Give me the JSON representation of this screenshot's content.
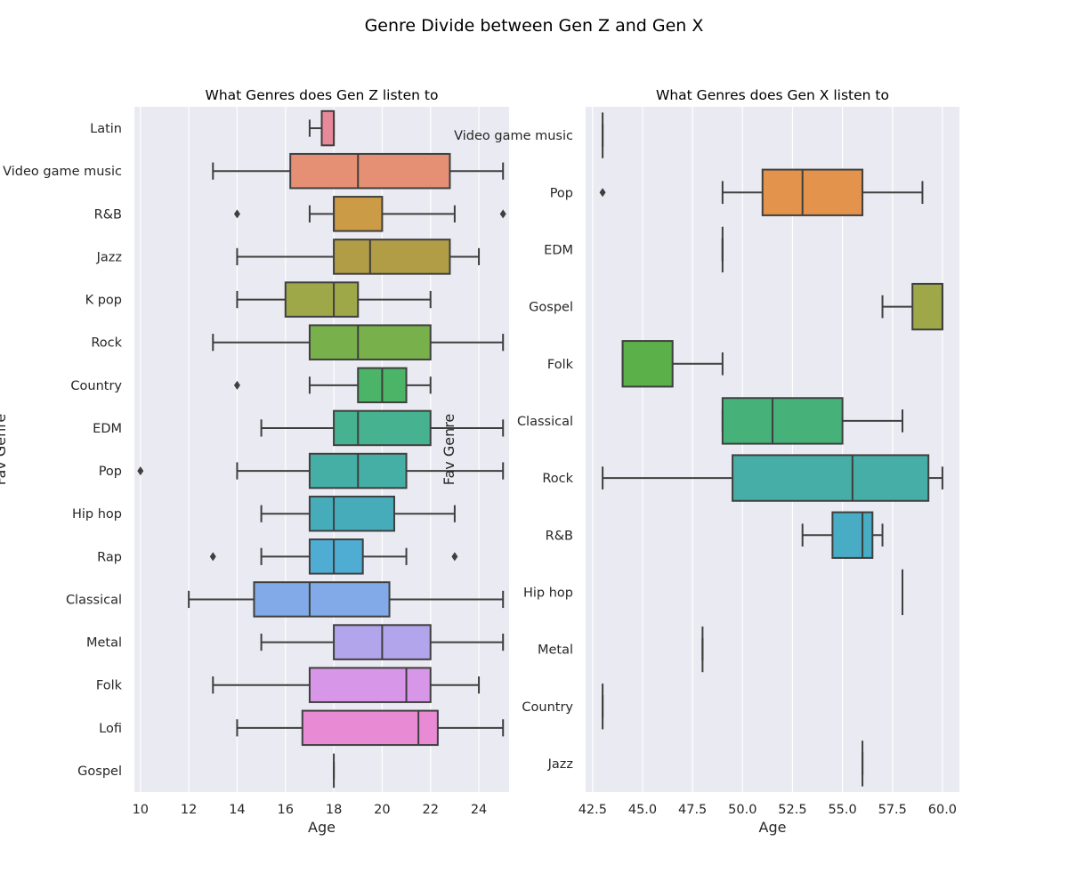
{
  "figure": {
    "title": "Genre Divide between Gen Z and Gen X"
  },
  "chart_data": [
    {
      "type": "boxplot",
      "orientation": "horizontal",
      "title": "What Genres does Gen Z listen to",
      "xlabel": "Age",
      "ylabel": "Fav Genre",
      "xlim": [
        9.75,
        25.25
      ],
      "xticks": [
        10,
        12,
        14,
        16,
        18,
        20,
        22,
        24
      ],
      "xtick_labels": [
        "10",
        "12",
        "14",
        "16",
        "18",
        "20",
        "22",
        "24"
      ],
      "grid": true,
      "categories": [
        "Latin",
        "Video game music",
        "R&B",
        "Jazz",
        "K pop",
        "Rock",
        "Country",
        "EDM",
        "Pop",
        "Hip hop",
        "Rap",
        "Classical",
        "Metal",
        "Folk",
        "Lofi",
        "Gospel"
      ],
      "boxes": [
        {
          "whislo": 17,
          "q1": 17.5,
          "med": 18,
          "q3": 18,
          "whishi": 18,
          "fliers": [],
          "color": "#e8899a"
        },
        {
          "whislo": 13,
          "q1": 16.2,
          "med": 19,
          "q3": 22.8,
          "whishi": 25,
          "fliers": [],
          "color": "#e59074"
        },
        {
          "whislo": 17,
          "q1": 18,
          "med": 18,
          "q3": 20,
          "whishi": 23,
          "fliers": [
            14,
            25
          ],
          "color": "#cc9b46"
        },
        {
          "whislo": 14,
          "q1": 18,
          "med": 19.5,
          "q3": 22.8,
          "whishi": 24,
          "fliers": [],
          "color": "#b09d46"
        },
        {
          "whislo": 14,
          "q1": 16,
          "med": 18,
          "q3": 19,
          "whishi": 22,
          "fliers": [],
          "color": "#9ea848"
        },
        {
          "whislo": 13,
          "q1": 17,
          "med": 19,
          "q3": 22,
          "whishi": 25,
          "fliers": [],
          "color": "#78b04c"
        },
        {
          "whislo": 17,
          "q1": 19,
          "med": 20,
          "q3": 21,
          "whishi": 22,
          "fliers": [
            14
          ],
          "color": "#4bb466"
        },
        {
          "whislo": 15,
          "q1": 18,
          "med": 19,
          "q3": 22,
          "whishi": 25,
          "fliers": [],
          "color": "#46b290"
        },
        {
          "whislo": 14,
          "q1": 17,
          "med": 19,
          "q3": 21,
          "whishi": 25,
          "fliers": [
            10
          ],
          "color": "#45afa5"
        },
        {
          "whislo": 15,
          "q1": 17,
          "med": 18,
          "q3": 20.5,
          "whishi": 23,
          "fliers": [],
          "color": "#47acba"
        },
        {
          "whislo": 15,
          "q1": 17,
          "med": 18,
          "q3": 19.2,
          "whishi": 21,
          "fliers": [
            13,
            23
          ],
          "color": "#4fadd4"
        },
        {
          "whislo": 12,
          "q1": 14.7,
          "med": 17,
          "q3": 20.3,
          "whishi": 25,
          "fliers": [],
          "color": "#82aae8"
        },
        {
          "whislo": 15,
          "q1": 18,
          "med": 20,
          "q3": 22,
          "whishi": 25,
          "fliers": [],
          "color": "#b3a5ec"
        },
        {
          "whislo": 13,
          "q1": 17,
          "med": 21,
          "q3": 22,
          "whishi": 24,
          "fliers": [],
          "color": "#d796e8"
        },
        {
          "whislo": 14,
          "q1": 16.7,
          "med": 21.5,
          "q3": 22.3,
          "whishi": 25,
          "fliers": [],
          "color": "#e98ad5"
        },
        {
          "whislo": 18,
          "q1": 18,
          "med": 18,
          "q3": 18,
          "whishi": 18,
          "fliers": [],
          "color": "#e98ab6"
        }
      ]
    },
    {
      "type": "boxplot",
      "orientation": "horizontal",
      "title": "What Genres does Gen X listen to",
      "xlabel": "Age",
      "ylabel": "Fav Genre",
      "xlim": [
        42.15,
        60.85
      ],
      "xticks": [
        42.5,
        45,
        47.5,
        50,
        52.5,
        55,
        57.5,
        60
      ],
      "xtick_labels": [
        "42.5",
        "45.0",
        "47.5",
        "50.0",
        "52.5",
        "55.0",
        "57.5",
        "60.0"
      ],
      "grid": true,
      "categories": [
        "Video game music",
        "Pop",
        "EDM",
        "Gospel",
        "Folk",
        "Classical",
        "Rock",
        "R&B",
        "Hip hop",
        "Metal",
        "Country",
        "Jazz"
      ],
      "boxes": [
        {
          "whislo": 43,
          "q1": 43,
          "med": 43,
          "q3": 43,
          "whishi": 43,
          "fliers": [],
          "color": "#e8899a"
        },
        {
          "whislo": 49,
          "q1": 51,
          "med": 53,
          "q3": 56,
          "whishi": 59,
          "fliers": [
            43
          ],
          "color": "#e3934c"
        },
        {
          "whislo": 49,
          "q1": 49,
          "med": 49,
          "q3": 49,
          "whishi": 49,
          "fliers": [],
          "color": "#bfa246"
        },
        {
          "whislo": 57,
          "q1": 58.5,
          "med": 60,
          "q3": 60,
          "whishi": 60,
          "fliers": [],
          "color": "#9ea848"
        },
        {
          "whislo": 44,
          "q1": 44,
          "med": 44,
          "q3": 46.5,
          "whishi": 49,
          "fliers": [],
          "color": "#5cb04a"
        },
        {
          "whislo": 49,
          "q1": 49,
          "med": 51.5,
          "q3": 55,
          "whishi": 58,
          "fliers": [],
          "color": "#46b27a"
        },
        {
          "whislo": 43,
          "q1": 49.5,
          "med": 55.5,
          "q3": 59.3,
          "whishi": 60,
          "fliers": [],
          "color": "#46aea6"
        },
        {
          "whislo": 53,
          "q1": 54.5,
          "med": 56,
          "q3": 56.5,
          "whishi": 57,
          "fliers": [],
          "color": "#47acc4"
        },
        {
          "whislo": 58,
          "q1": 58,
          "med": 58,
          "q3": 58,
          "whishi": 58,
          "fliers": [],
          "color": "#6ab0e0"
        },
        {
          "whislo": 48,
          "q1": 48,
          "med": 48,
          "q3": 48,
          "whishi": 48,
          "fliers": [],
          "color": "#a7a6ee"
        },
        {
          "whislo": 43,
          "q1": 43,
          "med": 43,
          "q3": 43,
          "whishi": 43,
          "fliers": [],
          "color": "#d796e8"
        },
        {
          "whislo": 56,
          "q1": 56,
          "med": 56,
          "q3": 56,
          "whishi": 56,
          "fliers": [],
          "color": "#e98ab6"
        }
      ]
    }
  ],
  "colors": {
    "axes_bg": "#eaeaf2",
    "grid": "#ffffff",
    "line": "#3f3f3f"
  }
}
